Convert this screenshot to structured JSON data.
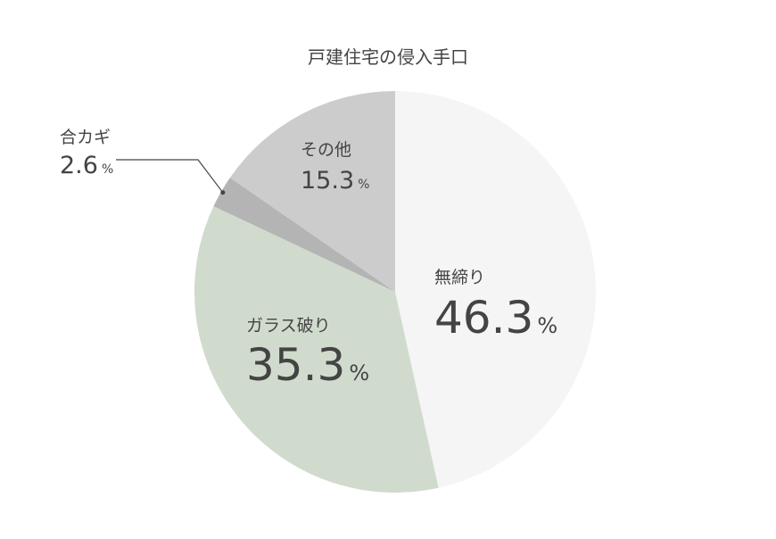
{
  "chart_data": {
    "type": "pie",
    "title": "戸建住宅の侵入手口",
    "unit": "%",
    "start": "top",
    "direction": "clockwise",
    "slices": [
      {
        "label": "無締り",
        "value": 46.3,
        "value_text": "46.3",
        "color": "#f5f5f5"
      },
      {
        "label": "ガラス破り",
        "value": 35.3,
        "value_text": "35.3",
        "color": "#d0dbcd"
      },
      {
        "label": "合カギ",
        "value": 2.6,
        "value_text": "2.6",
        "color": "#b4b4b4"
      },
      {
        "label": "その他",
        "value": 15.3,
        "value_text": "15.3",
        "color": "#cccccc"
      }
    ]
  }
}
